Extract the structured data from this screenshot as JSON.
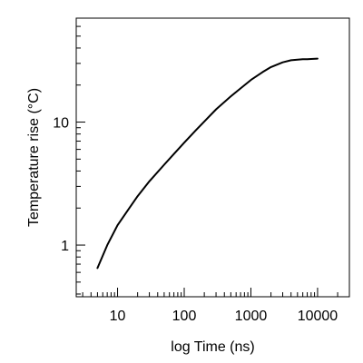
{
  "chart_data": {
    "type": "line",
    "title": "",
    "xlabel": "log Time (ns)",
    "ylabel": "Temperature rise (°C)",
    "x_scale": "log",
    "y_scale": "log",
    "xlim": [
      2.4,
      30000
    ],
    "ylim": [
      0.38,
      70
    ],
    "x_ticks": [
      {
        "value": 10,
        "label": "10"
      },
      {
        "value": 100,
        "label": "100"
      },
      {
        "value": 1000,
        "label": "1000"
      },
      {
        "value": 10000,
        "label": "10000"
      }
    ],
    "y_ticks": [
      {
        "value": 1,
        "label": "1"
      },
      {
        "value": 10,
        "label": "10"
      }
    ],
    "grid": false,
    "legend": "none",
    "line_color": "#000000",
    "series": [
      {
        "x": [
          5,
          7,
          10,
          15,
          20,
          30,
          50,
          70,
          100,
          150,
          200,
          300,
          500,
          700,
          1000,
          1500,
          2000,
          3000,
          4000,
          5000,
          6000,
          7000,
          8000,
          10000
        ],
        "y": [
          0.65,
          1.0,
          1.45,
          2.0,
          2.5,
          3.3,
          4.5,
          5.5,
          6.8,
          8.6,
          10.1,
          12.7,
          16.2,
          18.8,
          22.0,
          25.5,
          28.0,
          30.6,
          31.8,
          32.2,
          32.4,
          32.5,
          32.6,
          32.8
        ]
      }
    ]
  }
}
